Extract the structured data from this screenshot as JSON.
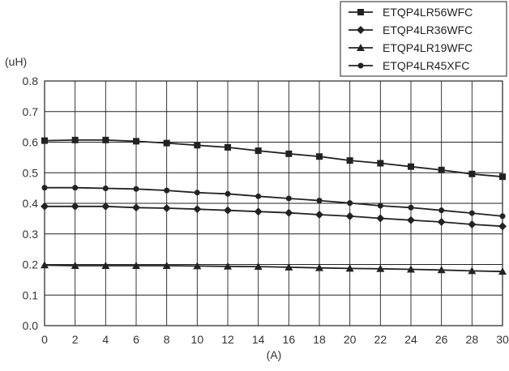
{
  "chart_data": {
    "type": "line",
    "title": "",
    "xlabel": "(A)",
    "ylabel": "(uH)",
    "xlim": [
      0,
      30
    ],
    "ylim": [
      0.0,
      0.8
    ],
    "xticks": [
      "0",
      "2",
      "4",
      "6",
      "8",
      "10",
      "12",
      "14",
      "16",
      "18",
      "20",
      "22",
      "24",
      "26",
      "28",
      "30"
    ],
    "yticks": [
      "0.0",
      "0.1",
      "0.2",
      "0.3",
      "0.4",
      "0.5",
      "0.6",
      "0.7",
      "0.8"
    ],
    "grid": true,
    "legend_position": "top-right, outside plot",
    "x": [
      0,
      2,
      4,
      6,
      8,
      10,
      12,
      14,
      16,
      18,
      20,
      22,
      24,
      26,
      28,
      30
    ],
    "series": [
      {
        "name": "ETQP4LR56WFC",
        "marker": "square",
        "values": [
          0.605,
          0.607,
          0.607,
          0.603,
          0.597,
          0.59,
          0.583,
          0.572,
          0.562,
          0.553,
          0.54,
          0.531,
          0.52,
          0.509,
          0.496,
          0.487
        ]
      },
      {
        "name": "ETQP4LR36WFC",
        "marker": "diamond",
        "values": [
          0.39,
          0.39,
          0.39,
          0.386,
          0.384,
          0.381,
          0.377,
          0.373,
          0.369,
          0.363,
          0.358,
          0.351,
          0.345,
          0.339,
          0.331,
          0.325
        ]
      },
      {
        "name": "ETQP4LR19WFC",
        "marker": "triangle",
        "values": [
          0.198,
          0.196,
          0.196,
          0.196,
          0.196,
          0.195,
          0.194,
          0.193,
          0.191,
          0.189,
          0.187,
          0.186,
          0.184,
          0.182,
          0.179,
          0.177
        ]
      },
      {
        "name": "ETQP4LR45XFC",
        "marker": "circle",
        "values": [
          0.451,
          0.451,
          0.449,
          0.447,
          0.442,
          0.435,
          0.431,
          0.423,
          0.416,
          0.409,
          0.401,
          0.392,
          0.386,
          0.377,
          0.368,
          0.358
        ]
      }
    ]
  },
  "colors": {
    "line": "#222222",
    "grid": "#222222",
    "background": "#ffffff"
  }
}
